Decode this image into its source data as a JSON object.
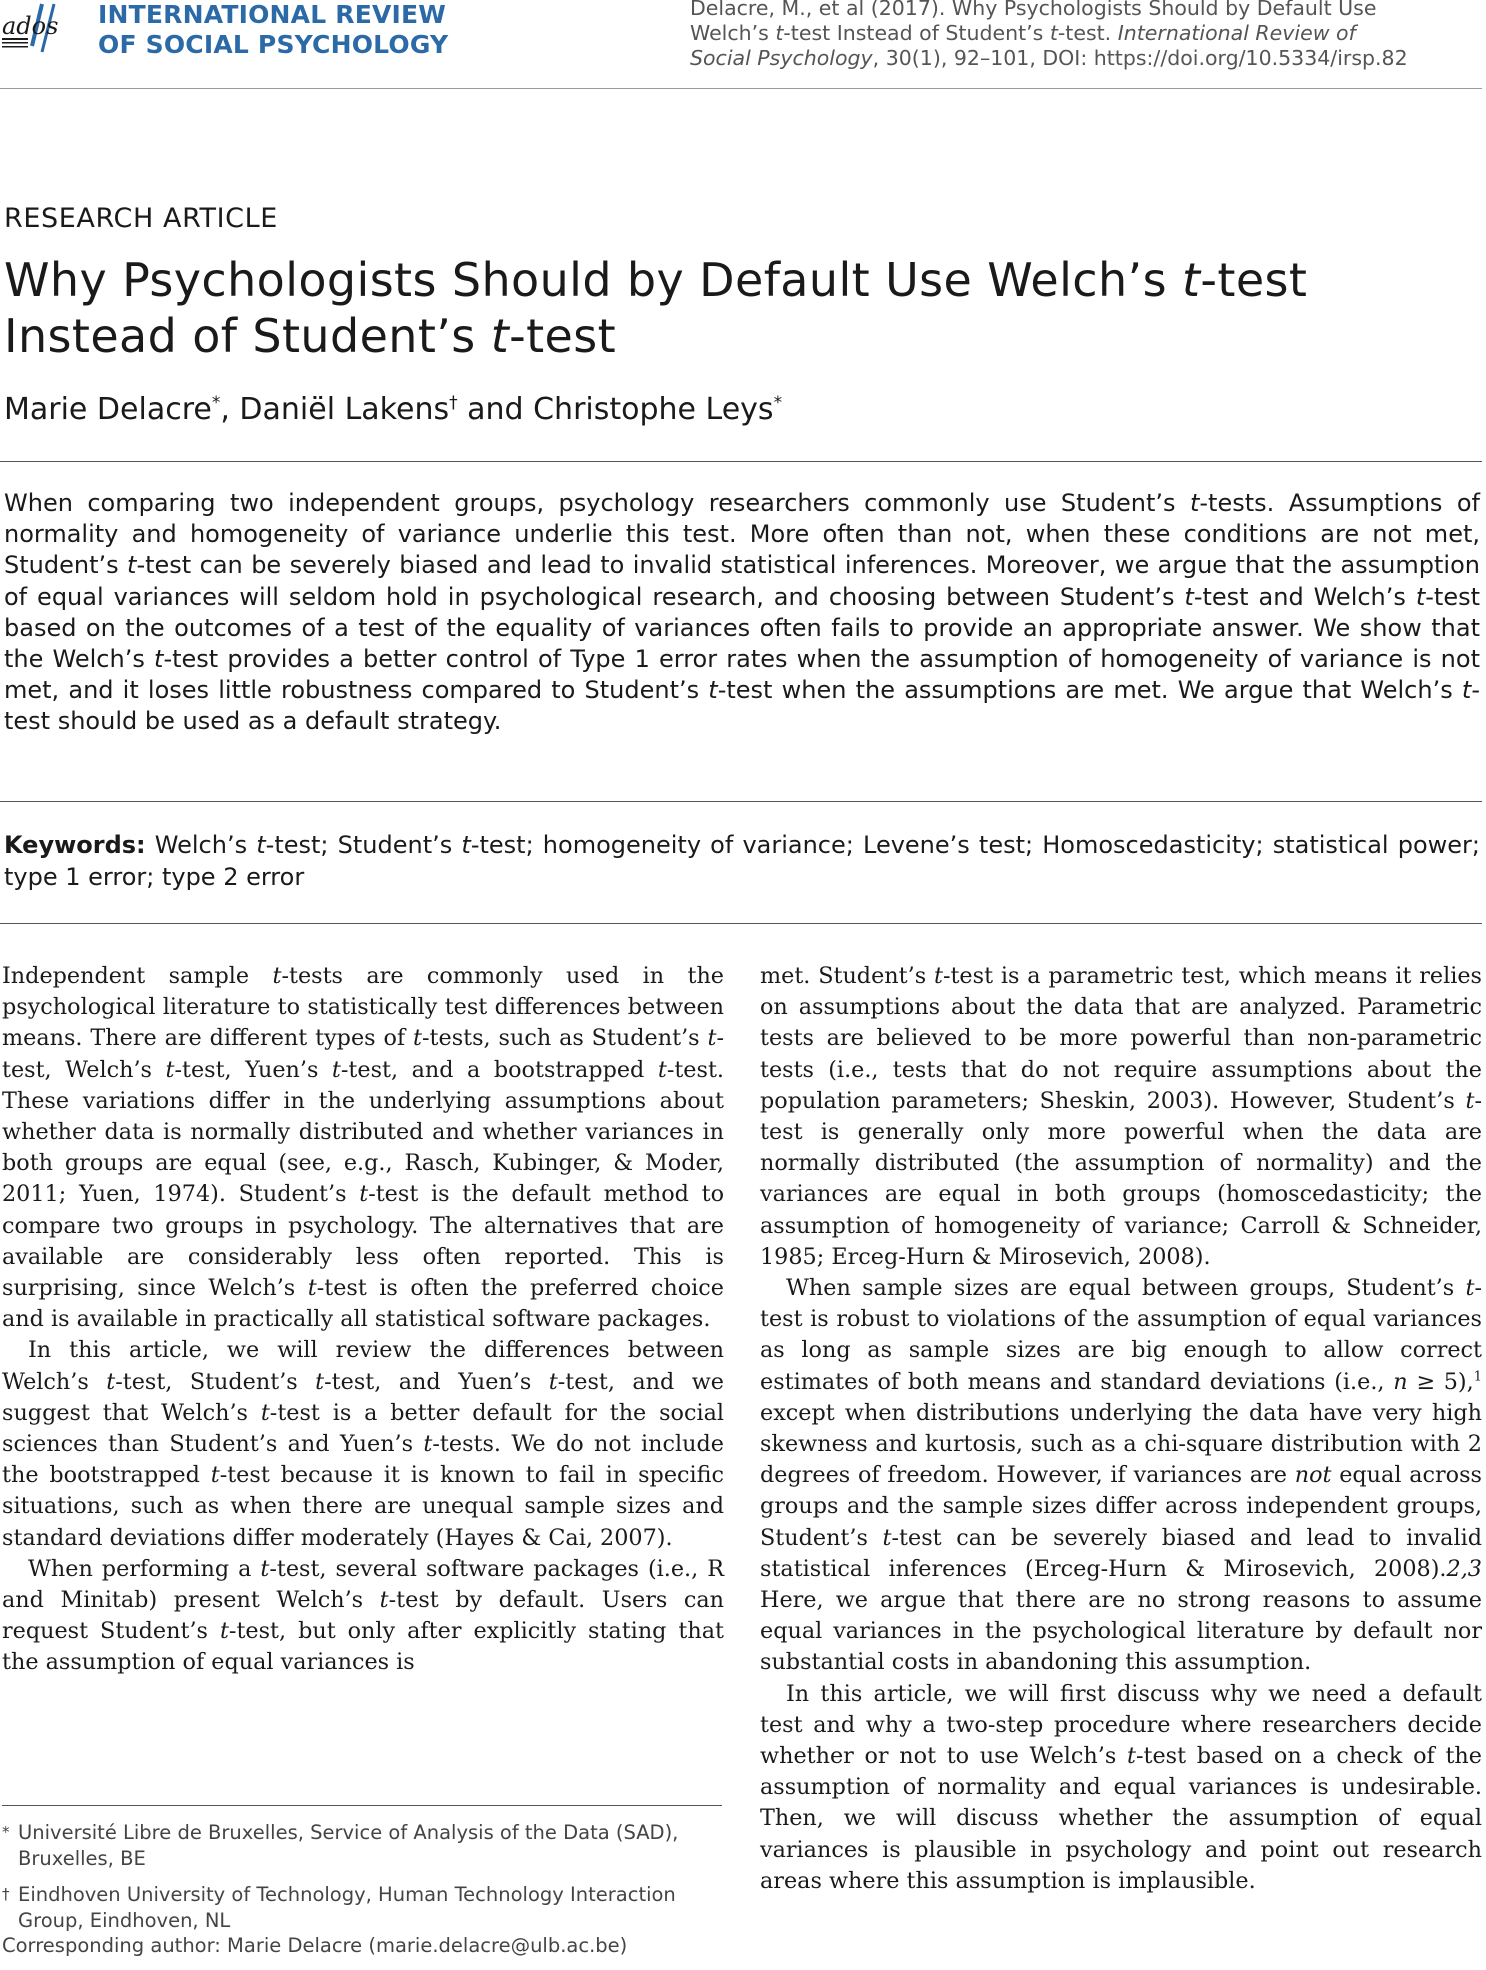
{
  "header": {
    "logo_text": "ados",
    "journal_line_1": "INTERNATIONAL REVIEW",
    "journal_line_2": "OF SOCIAL PSYCHOLOGY",
    "citation_1": "Delacre, M., et al (2017). Why Psychologists Should by Default Use",
    "citation_2a": "Welch’s ",
    "citation_2b": "t",
    "citation_2c": "-test Instead of Student’s ",
    "citation_2d": "t",
    "citation_2e": "-test. ",
    "citation_2f": "International Review of",
    "citation_3a": "Social Psychology",
    "citation_3b": ", 30(1), 92–101, DOI: https://doi.org/10.5334/irsp.82",
    "brand_color": "#2b6aa6"
  },
  "article": {
    "type": "RESEARCH ARTICLE",
    "title_1a": "Why Psychologists Should by Default Use Welch’s ",
    "title_1b": "t",
    "title_1c": "-test",
    "title_2a": "Instead of Student’s ",
    "title_2b": "t",
    "title_2c": "-test",
    "author_1": "Marie Delacre",
    "author_1_mark": "*",
    "sep_1": ", ",
    "author_2": "Daniël Lakens",
    "author_2_mark": "†",
    "sep_2": " and ",
    "author_3": "Christophe Leys",
    "author_3_mark": "*"
  },
  "abstract": [
    "When comparing two independent groups, psychology researchers commonly use Student’s ",
    "t",
    "-tests. Assumptions of normality and homogeneity of variance underlie this test. More often than not, when these conditions are not met, Student’s ",
    "t",
    "-test can be severely biased and lead to invalid statistical inferences. Moreover, we argue that the assumption of equal variances will seldom hold in psychological research, and choosing between Student’s ",
    "t",
    "-test and Welch’s ",
    "t",
    "-test based on the outcomes of a test of the equality of variances often fails to provide an appropriate answer. We show that the Welch’s ",
    "t",
    "-test provides a better control of Type 1 error rates when the assumption of homogeneity of variance is not met, and it loses little robustness compared to Student’s ",
    "t",
    "-test when the assumptions are met. We argue that Welch’s ",
    "t",
    "-test should be used as a default strategy."
  ],
  "keywords": {
    "label": "Keywords:",
    "parts": [
      " Welch’s ",
      "t",
      "-test; Student’s ",
      "t",
      "-test; homogeneity of variance; Levene’s test; Homoscedasticity; statistical power; type 1 error; type 2 error"
    ]
  },
  "left_column": {
    "p1": [
      "Independent sample ",
      "t",
      "-tests are commonly used in the psychological literature to statistically test differences between means. There are different types of ",
      "t",
      "-tests, such as Student’s ",
      "t",
      "-test, Welch’s ",
      "t",
      "-test, Yuen’s ",
      "t",
      "-test, and a boot­strapped ",
      "t",
      "-test. These variations differ in the underlying assumptions about whether data is normally distributed and whether variances in both groups are equal (see, e.g., Rasch, Kubinger, & Moder, 2011; Yuen, 1974). Student’s ",
      "t",
      "-test is the default method to compare two groups in psy­chology. The alternatives that are available are consider­ably less often reported. This is surprising, since Welch’s ",
      "t",
      "-test is often the preferred choice and is available in prac­tically all statistical software packages."
    ],
    "p2": [
      "In this article, we will review the differences between Welch’s ",
      "t",
      "-test, Student’s ",
      "t",
      "-test, and Yuen’s ",
      "t",
      "-test, and we suggest that Welch’s ",
      "t",
      "-test is a better default for the social sciences than Student’s and Yuen’s ",
      "t",
      "-tests. We do not include the bootstrapped ",
      "t",
      "-test because it is known to fail in specific situations, such as when there are unequal sam­ple sizes and standard deviations differ moderately (Hayes & Cai, 2007)."
    ],
    "p3": [
      "When performing a ",
      "t",
      "-test, several software packages (i.e., R and Minitab) present Welch’s ",
      "t",
      "-test by default. Users can request Student’s ",
      "t",
      "-test, but only after explic­itly stating that the assumption of equal variances is"
    ]
  },
  "right_column": {
    "p1": [
      "met. Student’s ",
      "t",
      "-test is a parametric test, which means it relies on assumptions about the data that are ana­lyzed. Parametric tests are believed to be more powerful than non-parametric tests (i.e., tests that do not require assumptions about the population parameters; Sheskin, 2003). However, Student’s ",
      "t",
      "-test is generally only more powerful when the data are normally distributed (the assumption of normality) and the variances are equal in both groups (homoscedasticity; the assumption of homo­geneity of variance; Carroll & Schneider, 1985; Erceg-Hurn & Mirosevich, 2008)."
    ],
    "p2": [
      "When sample sizes are equal between groups, Student’s ",
      "t",
      "-test is robust to violations of the assumption of equal variances as long as sample sizes are big enough to allow correct estimates of both means and standard deviations (i.e., ",
      "n",
      " ≥ 5),",
      "1",
      " except when distributions underlying the data have very high skewness and kurtosis, such as a chi-square distribution with 2 degrees of freedom. However, if variances are ",
      "not",
      " equal across groups and the sample sizes differ across independent groups, Student’s ",
      "t",
      "-test can be severely biased and lead to invalid statistical infer­ences (Erceg-Hurn & Mirosevich, 2008).",
      "2,3",
      " Here, we argue that there are no strong reasons to assume equal variances in the psychological literature by default nor substantial costs in abandoning this assumption."
    ],
    "p3": [
      "In this article, we will first discuss why we need a default test and why a two-step procedure where researchers decide whether or not to use Welch’s ",
      "t",
      "-test based on a check of the assumption of normality and equal variances is undesirable. Then, we will discuss whether the assump­tion of equal variances is plausible in psychology and point out research areas where this assumption is implausible."
    ]
  },
  "footnotes": {
    "fn1_mark": "*",
    "fn1": "Université Libre de Bruxelles, Service of Analysis of the Data (SAD), Bruxelles, BE",
    "fn2_mark": "†",
    "fn2": "Eindhoven University of Technology, Human Technology Interaction Group, Eindhoven, NL",
    "corresponding": "Corresponding author: Marie Delacre (marie.delacre@ulb.ac.be)"
  }
}
